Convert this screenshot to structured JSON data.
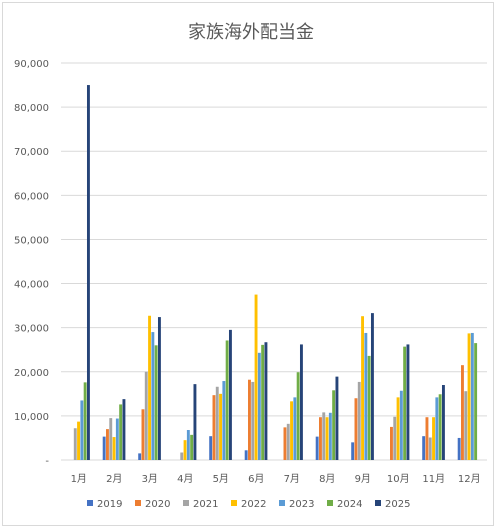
{
  "chart_data": {
    "type": "bar",
    "title": "家族海外配当金",
    "categories": [
      "1月",
      "2月",
      "3月",
      "4月",
      "5月",
      "6月",
      "7月",
      "8月",
      "9月",
      "10月",
      "11月",
      "12月"
    ],
    "ylim": [
      0,
      90000
    ],
    "yticks": [
      0,
      10000,
      20000,
      30000,
      40000,
      50000,
      60000,
      70000,
      80000,
      90000
    ],
    "ytick_labels": [
      "-",
      "10,000",
      "20,000",
      "30,000",
      "40,000",
      "50,000",
      "60,000",
      "70,000",
      "80,000",
      "90,000"
    ],
    "grid": true,
    "legend_position": "bottom",
    "series": [
      {
        "name": "2019",
        "color": "#4472c4",
        "values": [
          0,
          5300,
          1500,
          0,
          5400,
          2200,
          0,
          5300,
          4000,
          0,
          5400,
          5000
        ]
      },
      {
        "name": "2020",
        "color": "#ed7d31",
        "values": [
          0,
          7000,
          11500,
          0,
          14700,
          18200,
          7400,
          9700,
          14000,
          7500,
          9700,
          21500
        ]
      },
      {
        "name": "2021",
        "color": "#a5a5a5",
        "values": [
          7200,
          9500,
          20000,
          1700,
          16600,
          17700,
          8200,
          10800,
          17700,
          9800,
          5100,
          15600
        ]
      },
      {
        "name": "2022",
        "color": "#ffc000",
        "values": [
          8700,
          5200,
          32700,
          4500,
          15000,
          37500,
          13300,
          9700,
          32600,
          14200,
          9700,
          28700
        ]
      },
      {
        "name": "2023",
        "color": "#5b9bd5",
        "values": [
          13500,
          9400,
          29000,
          6800,
          17900,
          24300,
          14200,
          10700,
          28800,
          15700,
          14200,
          28800
        ]
      },
      {
        "name": "2024",
        "color": "#70ad47",
        "values": [
          17600,
          12600,
          26000,
          5700,
          27100,
          26100,
          19900,
          15800,
          23600,
          25700,
          14900,
          26500
        ]
      },
      {
        "name": "2025",
        "color": "#264478",
        "values": [
          85000,
          13800,
          32400,
          17200,
          29500,
          26700,
          26200,
          18900,
          33300,
          26200,
          17000,
          0
        ]
      }
    ]
  }
}
